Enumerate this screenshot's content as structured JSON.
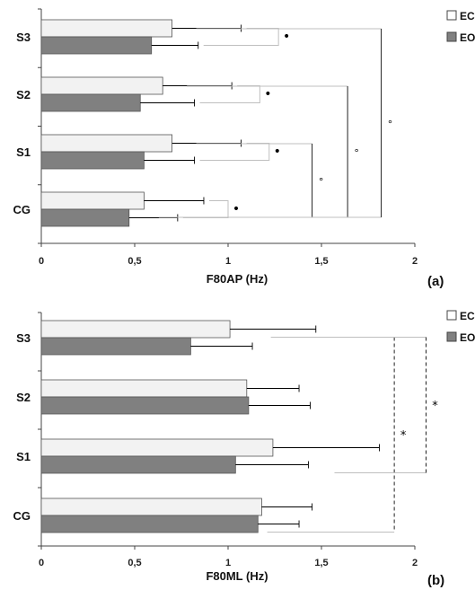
{
  "colors": {
    "ec": "#f2f2f2",
    "eo": "#808080",
    "axis": "#444444",
    "bracket": "#bfbfbf"
  },
  "chart_data": [
    {
      "type": "bar",
      "orientation": "horizontal",
      "panel_label": "(a)",
      "xlabel": "F80AP (Hz)",
      "xlim": [
        0,
        2
      ],
      "xticks": [
        "0",
        "0,5",
        "1",
        "1,5",
        "2"
      ],
      "categories": [
        "S3",
        "S2",
        "S1",
        "CG"
      ],
      "legend": [
        "EC",
        "EO"
      ],
      "legend_position": "top-right",
      "series": [
        {
          "name": "EC",
          "values": [
            0.7,
            0.65,
            0.7,
            0.55
          ],
          "errors": [
            0.37,
            0.37,
            0.37,
            0.32
          ]
        },
        {
          "name": "EO",
          "values": [
            0.59,
            0.53,
            0.55,
            0.47
          ],
          "errors": [
            0.25,
            0.29,
            0.27,
            0.26
          ]
        }
      ],
      "within_group_marks": [
        {
          "category": "S3",
          "symbol": "•",
          "to": 1.27
        },
        {
          "category": "S2",
          "symbol": "•",
          "to": 1.17
        },
        {
          "category": "S1",
          "symbol": "•",
          "to": 1.22
        },
        {
          "category": "CG",
          "symbol": "•",
          "to": 1.0
        }
      ],
      "between_group_marks": [
        {
          "from": "S1",
          "to": "CG",
          "symbol": "°",
          "x": 1.45
        },
        {
          "from": "S2",
          "to": "CG",
          "symbol": "°",
          "x": 1.64
        },
        {
          "from": "S3",
          "to": "CG",
          "symbol": "°",
          "x": 1.82
        }
      ]
    },
    {
      "type": "bar",
      "orientation": "horizontal",
      "panel_label": "(b)",
      "xlabel": "F80ML (Hz)",
      "xlim": [
        0,
        2
      ],
      "xticks": [
        "0",
        "0,5",
        "1",
        "1,5",
        "2"
      ],
      "categories": [
        "S3",
        "S2",
        "S1",
        "CG"
      ],
      "legend": [
        "EC",
        "EO"
      ],
      "legend_position": "top-right",
      "series": [
        {
          "name": "EC",
          "values": [
            1.01,
            1.1,
            1.24,
            1.18
          ],
          "errors": [
            0.46,
            0.28,
            0.57,
            0.27
          ]
        },
        {
          "name": "EO",
          "values": [
            0.8,
            1.11,
            1.04,
            1.16
          ],
          "errors": [
            0.33,
            0.33,
            0.39,
            0.22
          ]
        }
      ],
      "between_group_marks": [
        {
          "from": "S3",
          "to": "CG",
          "symbol": "*",
          "x": 1.89
        },
        {
          "from": "S3",
          "to": "S1",
          "symbol": "*",
          "x": 2.06
        }
      ]
    }
  ]
}
